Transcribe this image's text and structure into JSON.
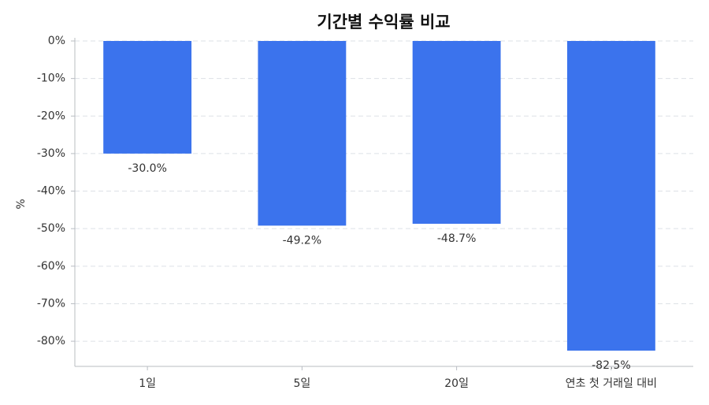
{
  "chart_data": {
    "type": "bar",
    "title": "기간별 수익률 비교",
    "y_label": "%",
    "categories": [
      "1일",
      "5일",
      "20일",
      "연초 첫 거래일 대비"
    ],
    "values": [
      -30.0,
      -49.2,
      -48.7,
      -82.5
    ],
    "value_labels": [
      "-30.0%",
      "-49.2%",
      "-48.7%",
      "-82.5%"
    ],
    "color": "#3b73ed",
    "ylim": [
      -86.7,
      0
    ],
    "yticks": [
      {
        "value": 0,
        "label": "0%"
      },
      {
        "value": -10,
        "label": "-10%"
      },
      {
        "value": -20,
        "label": "-20%"
      },
      {
        "value": -30,
        "label": "-30%"
      },
      {
        "value": -40,
        "label": "-40%"
      },
      {
        "value": -50,
        "label": "-50%"
      },
      {
        "value": -60,
        "label": "-60%"
      },
      {
        "value": -70,
        "label": "-70%"
      },
      {
        "value": -80,
        "label": "-80%"
      }
    ],
    "grid": true
  }
}
